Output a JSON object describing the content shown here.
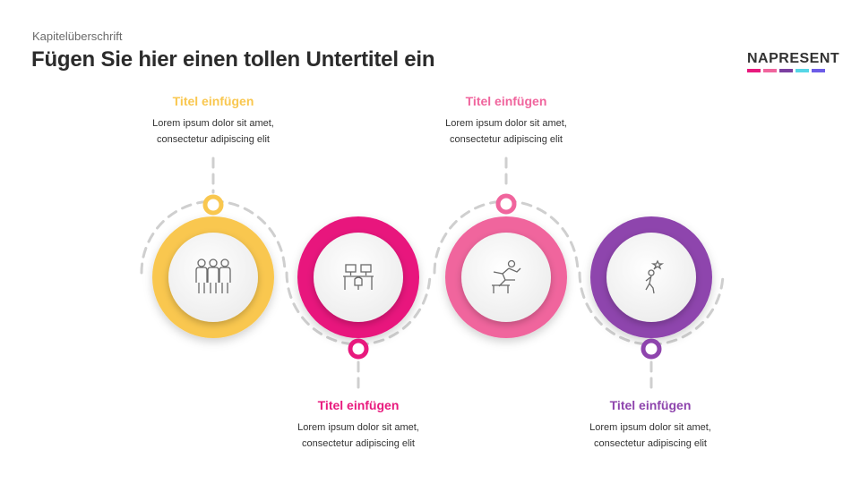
{
  "header": {
    "kicker": "Kapitelüberschrift",
    "title": "Fügen Sie hier einen tollen Untertitel ein"
  },
  "logo": {
    "text": "NAPRESENT",
    "bar_colors": [
      "#e8197d",
      "#f0659d",
      "#7b3fa0",
      "#55d6e6",
      "#6c5ce7"
    ]
  },
  "steps": [
    {
      "title": "Titel einfügen",
      "text_line1": "Lorem ipsum dolor sit amet,",
      "text_line2": "consectetur adipiscing elit",
      "color": "#f9c74f",
      "icon": "team-icon"
    },
    {
      "title": "Titel einfügen",
      "text_line1": "Lorem ipsum dolor sit amet,",
      "text_line2": "consectetur adipiscing elit",
      "color": "#e8197d",
      "icon": "workstation-icon"
    },
    {
      "title": "Titel einfügen",
      "text_line1": "Lorem ipsum dolor sit amet,",
      "text_line2": "consectetur adipiscing elit",
      "color": "#f0659d",
      "icon": "hurdle-runner-icon"
    },
    {
      "title": "Titel einfügen",
      "text_line1": "Lorem ipsum dolor sit amet,",
      "text_line2": "consectetur adipiscing elit",
      "color": "#8e44ad",
      "icon": "goal-reach-icon"
    }
  ]
}
